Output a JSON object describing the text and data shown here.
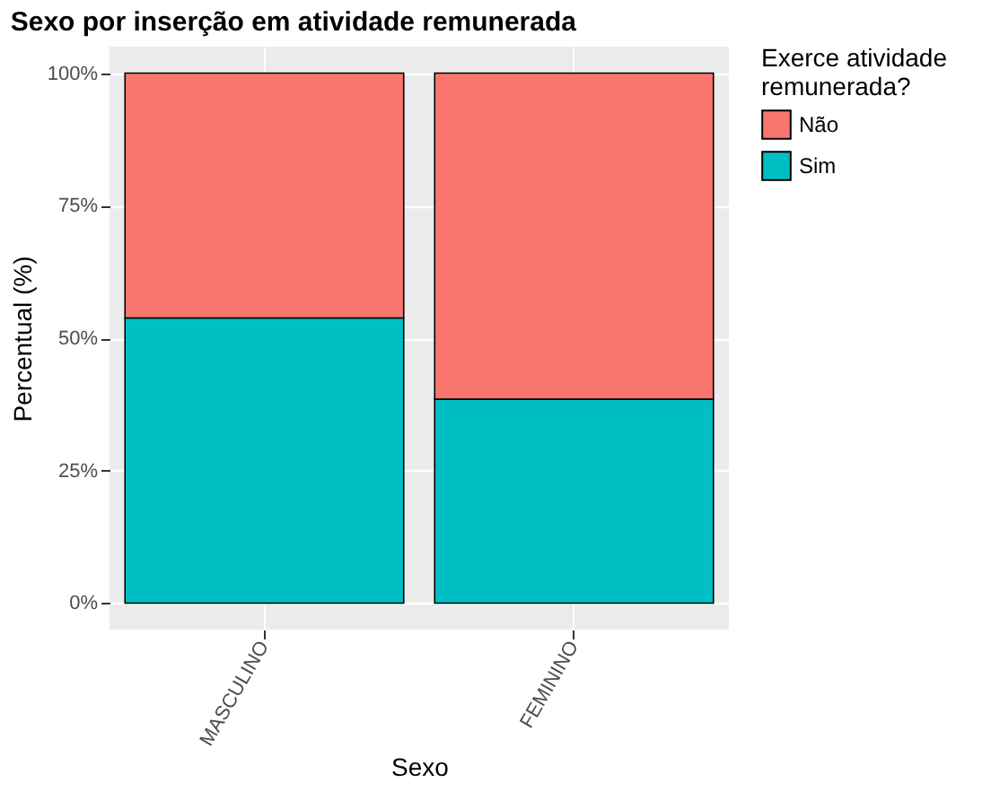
{
  "chart_data": {
    "type": "bar",
    "title": "Sexo por inserção em atividade remunerada",
    "xlabel": "Sexo",
    "ylabel": "Percentual (%)",
    "legend_title": "Exerce atividade remunerada?",
    "categories": [
      "MASCULINO",
      "FEMININO"
    ],
    "stacked": true,
    "series": [
      {
        "name": "Sim",
        "color": "#00bfc4",
        "values": [
          53.8,
          38.5
        ]
      },
      {
        "name": "Não",
        "color": "#f8766d",
        "values": [
          46.2,
          61.5
        ]
      }
    ],
    "ylim": [
      -5,
      105
    ],
    "yticks": [
      {
        "value": 0,
        "label": "0%"
      },
      {
        "value": 25,
        "label": "25%"
      },
      {
        "value": 50,
        "label": "50%"
      },
      {
        "value": 75,
        "label": "75%"
      },
      {
        "value": 100,
        "label": "100%"
      }
    ],
    "grid": true,
    "legend": "right"
  }
}
